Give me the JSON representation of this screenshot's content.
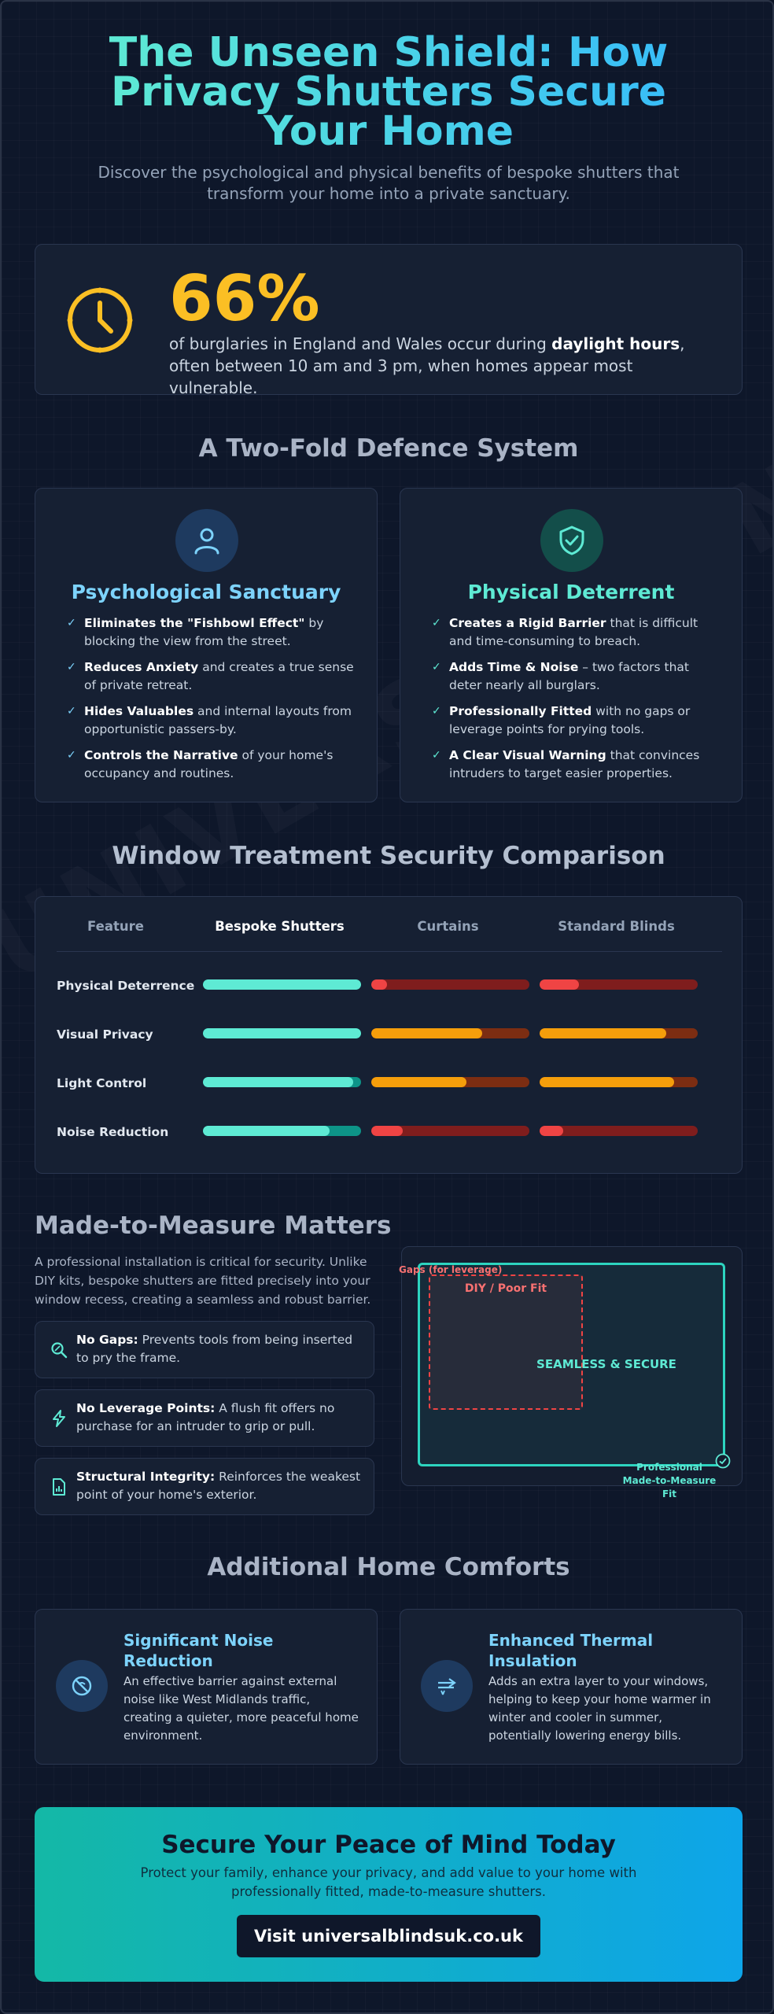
{
  "header": {
    "title": "The Unseen Shield: How Privacy Shutters Secure Your Home",
    "subtitle": "Discover the psychological and physical benefits of bespoke shutters that transform your home into a private sanctuary."
  },
  "stat": {
    "icon": "clock-icon",
    "number": "66%",
    "text_before": "of burglaries in England and Wales occur during ",
    "text_bold": "daylight hours",
    "text_after": ", often between 10 am and 3 pm, when homes appear most vulnerable."
  },
  "defence": {
    "title": "A Two-Fold Defence System",
    "columns": [
      {
        "icon": "user-icon",
        "title": "Psychological Sanctuary",
        "color": "#7dd3fc",
        "items": [
          {
            "bold": "Eliminates the \"Fishbowl Effect\"",
            "text": " by blocking the view from the street."
          },
          {
            "bold": "Reduces Anxiety",
            "text": " and creates a true sense of private retreat."
          },
          {
            "bold": "Hides Valuables",
            "text": " and internal layouts from opportunistic passers-by."
          },
          {
            "bold": "Controls the Narrative",
            "text": " of your home's occupancy and routines."
          }
        ]
      },
      {
        "icon": "shield-check-icon",
        "title": "Physical Deterrent",
        "color": "#5eead4",
        "items": [
          {
            "bold": "Creates a Rigid Barrier",
            "text": " that is difficult and time-consuming to breach."
          },
          {
            "bold": "Adds Time & Noise",
            "text": " – two factors that deter nearly all burglars."
          },
          {
            "bold": "Professionally Fitted",
            "text": " with no gaps or leverage points for prying tools."
          },
          {
            "bold": "A Clear Visual Warning",
            "text": " that convinces intruders to target easier properties."
          }
        ]
      }
    ]
  },
  "comparison": {
    "title": "Window Treatment Security Comparison",
    "headers": [
      "Feature",
      "Bespoke Shutters",
      "Curtains",
      "Standard Blinds"
    ],
    "rows": [
      {
        "feature": "Physical Deterrence",
        "values": [
          1.0,
          0.1,
          0.25
        ]
      },
      {
        "feature": "Visual Privacy",
        "values": [
          1.0,
          0.7,
          0.8
        ]
      },
      {
        "feature": "Light Control",
        "values": [
          0.95,
          0.6,
          0.85
        ]
      },
      {
        "feature": "Noise Reduction",
        "values": [
          0.8,
          0.2,
          0.15
        ]
      }
    ]
  },
  "measure": {
    "title_a": "Made-to-Measure ",
    "title_b": "Matters",
    "text": "A professional installation is critical for security. Unlike DIY kits, bespoke shutters are fitted precisely into your window recess, creating a seamless and robust barrier.",
    "features": [
      {
        "icon": "search-icon",
        "bold": "No Gaps:",
        "text": " Prevents tools from being inserted to pry the frame."
      },
      {
        "icon": "lightning-icon",
        "bold": "No Leverage Points:",
        "text": " A flush fit offers no purchase for an intruder to grip or pull."
      },
      {
        "icon": "document-chart-icon",
        "bold": "Structural Integrity:",
        "text": " Reinforces the weakest point of your home's exterior."
      }
    ],
    "diagram": {
      "gaps_label": "Gaps (for leverage)",
      "diy_label": "DIY / Poor Fit",
      "seamless_label": "SEAMLESS & SECURE",
      "pro_label_1": "Professional",
      "pro_label_2": "Made-to-Measure Fit"
    }
  },
  "comforts": {
    "title": "Additional Home Comforts",
    "items": [
      {
        "icon": "noise-block-icon",
        "title": "Significant Noise Reduction",
        "text": "An effective barrier against external noise like West Midlands traffic, creating a quieter, more peaceful home environment."
      },
      {
        "icon": "thermal-icon",
        "title": "Enhanced Thermal Insulation",
        "text": "Adds an extra layer to your windows, helping to keep your home warmer in winter and cooler in summer, potentially lowering energy bills."
      }
    ]
  },
  "cta": {
    "title": "Secure Your Peace of Mind Today",
    "text": "Protect your family, enhance your privacy, and add value to your home with professionally fitted, made-to-measure shutters.",
    "button": "Visit universalblindsuk.co.uk"
  },
  "watermark": "UNIVERSALBLINDSUK.CO",
  "colors": {
    "teal": "#5eead4",
    "orange": "#f59e0b",
    "red": "#ef4444",
    "amber": "#fbbf24",
    "sky": "#7dd3fc"
  }
}
